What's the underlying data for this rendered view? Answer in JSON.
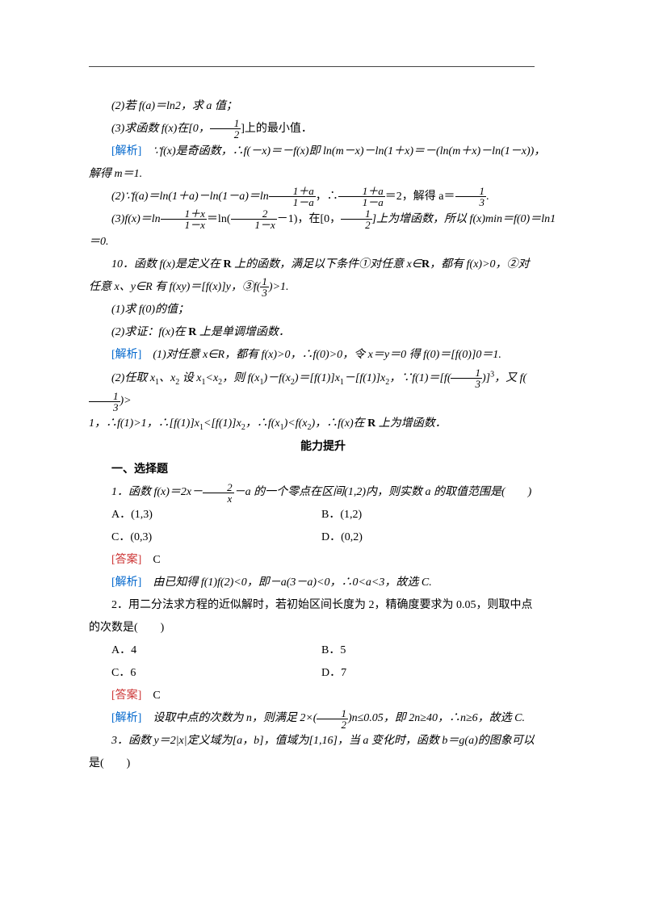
{
  "p1": "(2)若 f(a)＝ln2，求 a 值；",
  "p2_a": "(3)求函数 f(x)在[0，",
  "p2_b": "]上的最小值．",
  "ans_label": "[解析]",
  "p3_a": "∵f(x)是奇函数，∴f(－x)＝－f(x)即 ln(m－x)－ln(1＋x)＝－(ln(m＋x)－ln(1－x))，",
  "p4": "解得 m＝1.",
  "p5_a": "(2)∵f(a)＝ln(1＋a)－ln(1－a)＝ln",
  "p5_b": "，∴",
  "p5_c": "＝2，解得 a＝",
  "p5_d": ".",
  "p6_a": "(3)f(x)＝ln",
  "p6_b": "＝ln(",
  "p6_c": "－1)，在[0，",
  "p6_d": "]上为增函数，所以 f(x)min＝f(0)＝ln1＝0.",
  "p7": "10．函数 f(x)是定义在 R 上的函数，满足以下条件①对任意 x∈R，都有 f(x)>0，②对",
  "p8_a": "任意 x、y∈R 有 f(xy)＝[f(x)]y，③f(",
  "p8_b": ")>1.",
  "p9": "(1)求 f(0)的值；",
  "p10": "(2)求证：f(x)在 R 上是单调增函数．",
  "p11_a": "(1)对任意 x∈R，都有 f(x)>0，∴f(0)>0，令 x＝y＝0 得 f(0)＝[f(0)]0＝1.",
  "p12_a": "(2)任取 x1、x2 设 x1<x2，则 f(x1)－f(x2)＝[f(1)]x1－[f(1)]x2，∵f(1)＝[f(",
  "p12_b": ")]3，又 f(",
  "p12_c": ")>",
  "p13": "1，∴f(1)>1，∴[f(1)]x1<[f(1)]x2，∴f(x1)<f(x2)，∴f(x)在 R 上为增函数．",
  "section": "能力提升",
  "h1": "一、选择题",
  "q1_a": "1．函数 f(x)＝2x－",
  "q1_b": "－a 的一个零点在区间(1,2)内，则实数 a 的取值范围是(　　)",
  "q1A": "A．(1,3)",
  "q1B": "B．(1,2)",
  "q1C": "C．(0,3)",
  "q1D": "D．(0,2)",
  "ans": "[答案]",
  "q1ans": "C",
  "q1exp": "由已知得 f(1)f(2)<0，即－a(3－a)<0，∴0<a<3，故选 C.",
  "q2": "2．用二分法求方程的近似解时，若初始区间长度为 2，精确度要求为 0.05，则取中点",
  "q2b": "的次数是(　　)",
  "q2A": "A．4",
  "q2B": "B．5",
  "q2C": "C．6",
  "q2D": "D．7",
  "q2ans": "C",
  "q2exp_a": "设取中点的次数为 n，则满足 2×(",
  "q2exp_b": ")n≤0.05，即 2n≥40，∴n≥6，故选 C.",
  "q3": "3．函数 y＝2|x|定义域为[a，b]，值域为[1,16]，当 a 变化时，函数 b＝g(a)的图象可以",
  "q3b": "是(　　)",
  "f_half_n": "1",
  "f_half_d": "2",
  "f_1pa_n": "1＋a",
  "f_1pa_d": "1－a",
  "f_13_n": "1",
  "f_13_d": "3",
  "f_1px_n": "1＋x",
  "f_1px_d": "1－x",
  "f_2_n": "2",
  "f_2_d": "1－x",
  "f_2x_n": "2",
  "f_2x_d": "x"
}
